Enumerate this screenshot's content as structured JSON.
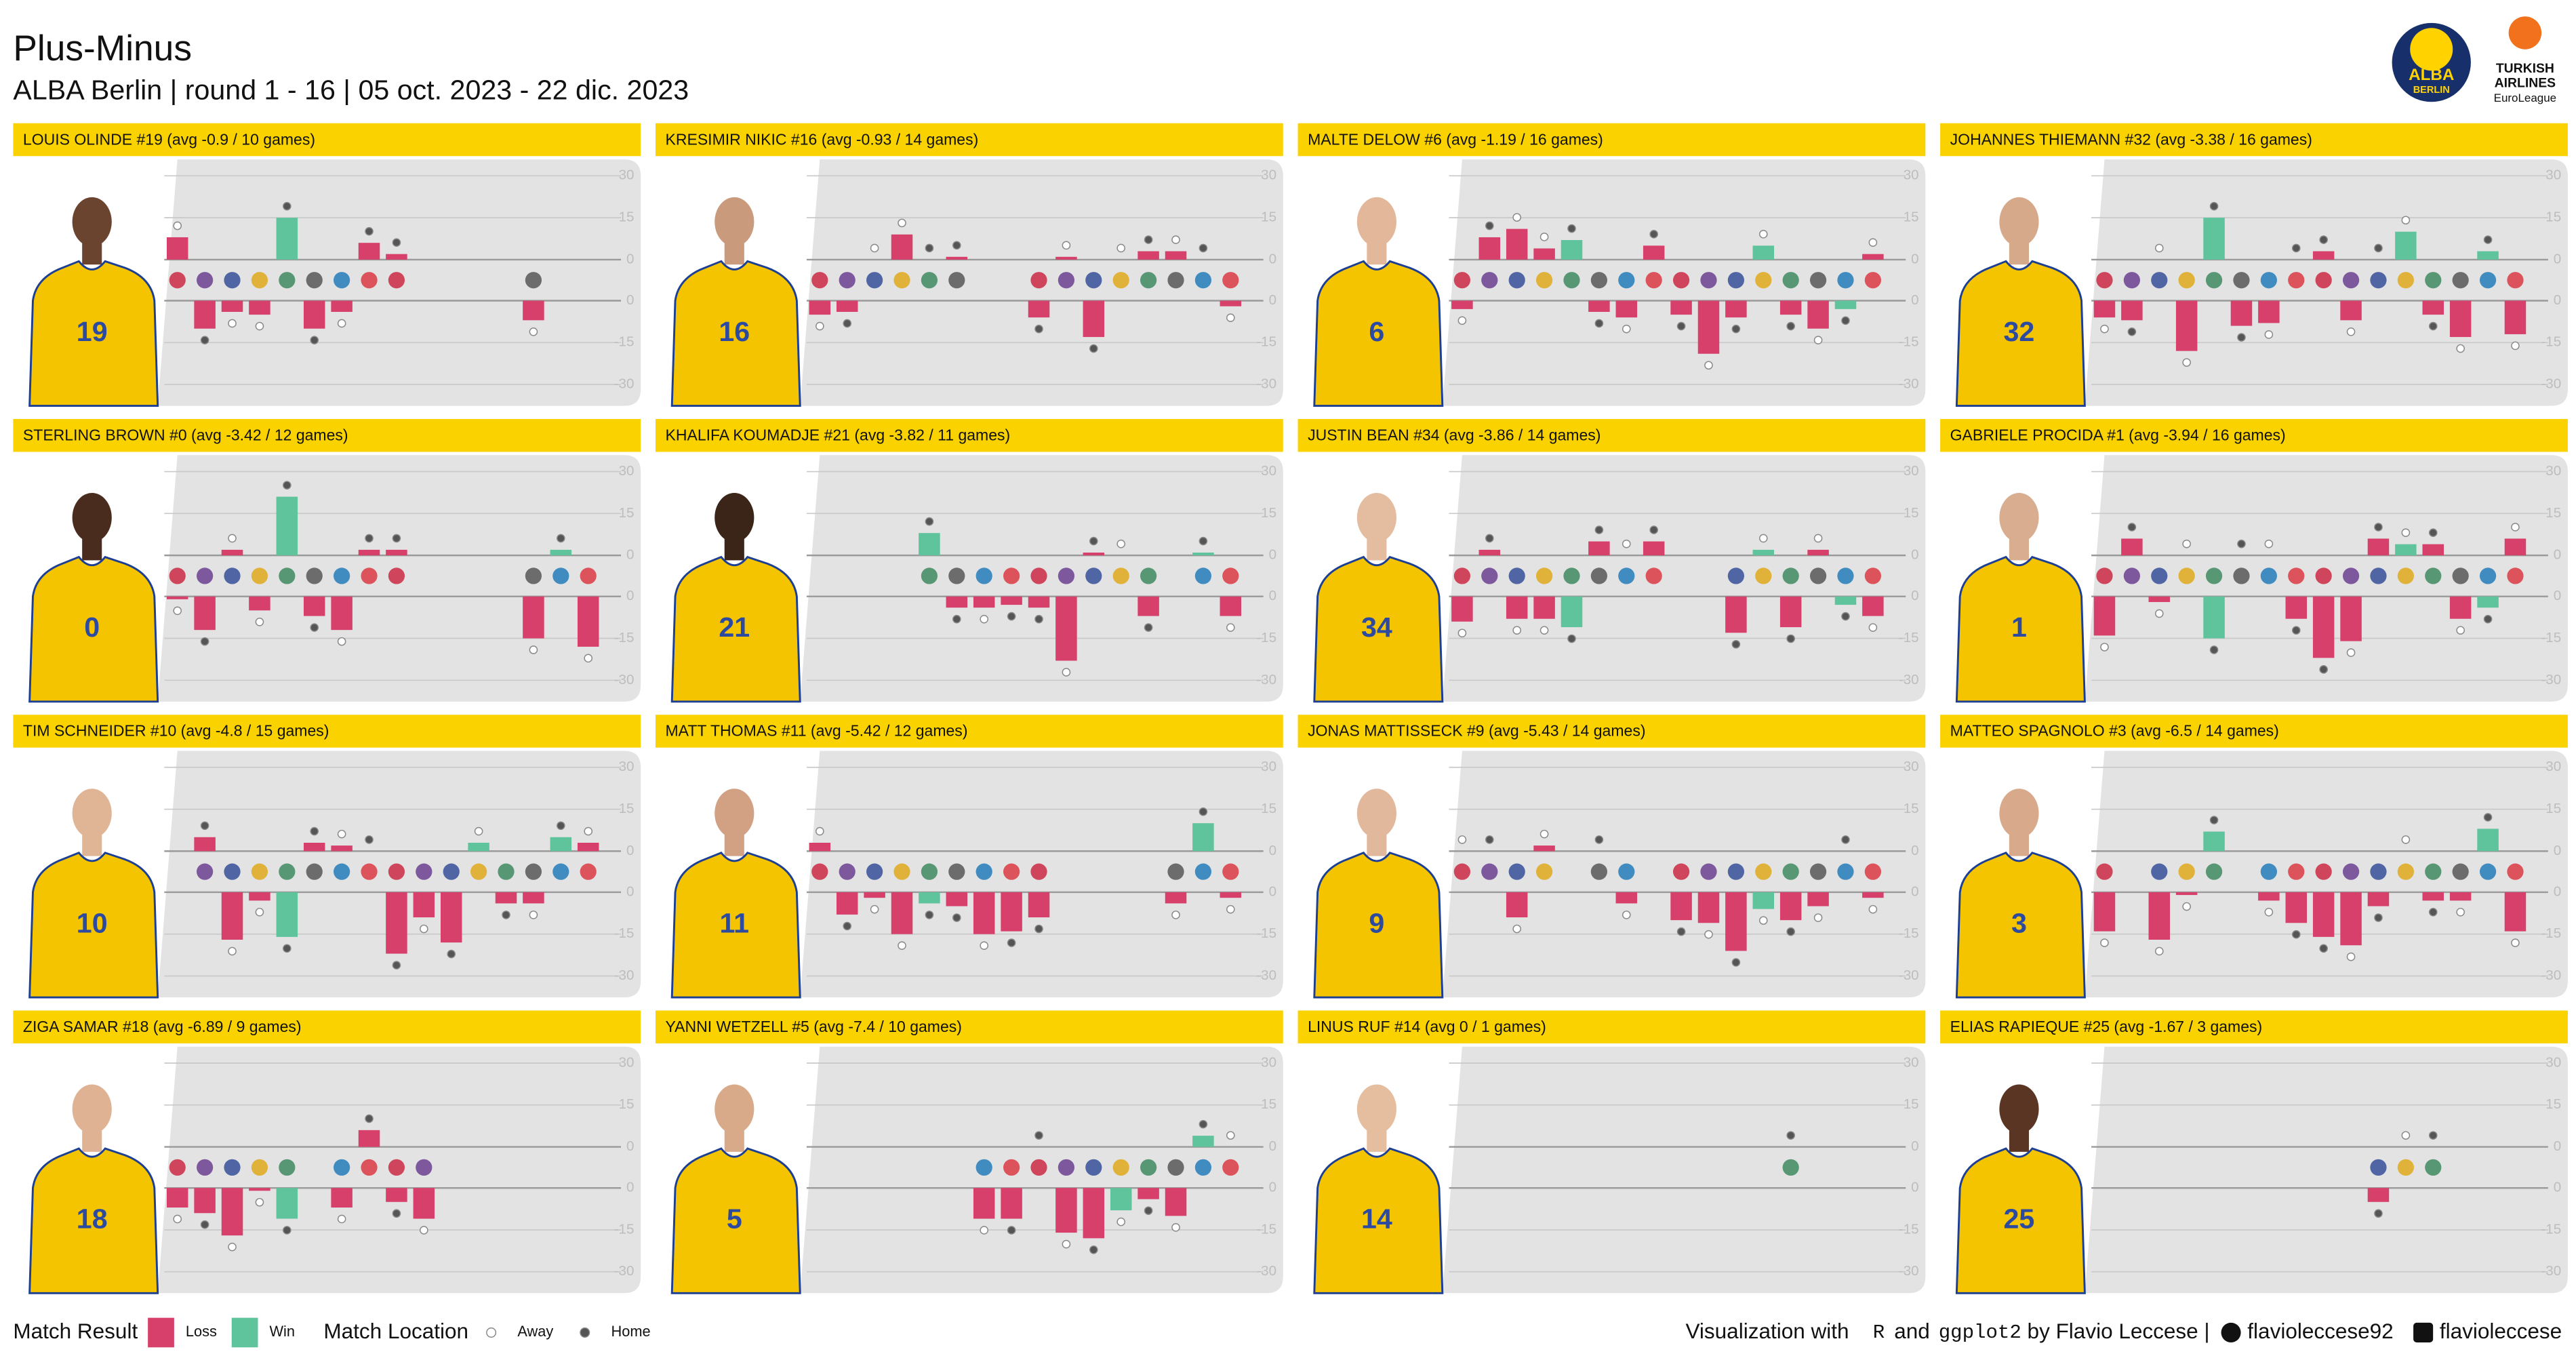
{
  "chart_data": {
    "type": "bar",
    "title": "Plus-Minus",
    "subtitle": "ALBA Berlin | round 1 - 16 | 05 oct. 2023 - 22 dic. 2023",
    "ylim": [
      -30,
      30
    ],
    "yticks": [
      30,
      15,
      0,
      -15,
      -30
    ],
    "colors": {
      "Loss": "#d6406b",
      "Win": "#5fc39c"
    },
    "result": [
      "Loss",
      "Loss",
      "Loss",
      "Loss",
      "Win",
      "Loss",
      "Loss",
      "Loss",
      "Loss",
      "Loss",
      "Loss",
      "Win",
      "Loss",
      "Loss",
      "Win",
      "Loss"
    ],
    "location": [
      "Away",
      "Home",
      "Away",
      "Away",
      "Home",
      "Home",
      "Away",
      "Home",
      "Home",
      "Away",
      "Home",
      "Away",
      "Home",
      "Away",
      "Home",
      "Away"
    ],
    "panels": [
      {
        "title": "LOUIS OLINDE #19 (avg -0.9 / 10 games)",
        "number": "19",
        "values": [
          8,
          -10,
          -4,
          -5,
          15,
          -10,
          -4,
          6,
          2,
          null,
          null,
          null,
          null,
          -7,
          null,
          null
        ]
      },
      {
        "title": "KRESIMIR NIKIC #16 (avg -0.93 / 14 games)",
        "number": "16",
        "values": [
          -5,
          -4,
          0,
          9,
          0,
          1,
          null,
          null,
          -6,
          1,
          -13,
          0,
          3,
          3,
          0,
          -2
        ]
      },
      {
        "title": "MALTE DELOW #6 (avg -1.19 / 16 games)",
        "number": "6",
        "values": [
          -3,
          8,
          11,
          4,
          7,
          -4,
          -6,
          5,
          -5,
          -19,
          -6,
          5,
          -5,
          -10,
          -3,
          2
        ]
      },
      {
        "title": "JOHANNES THIEMANN #32 (avg -3.38 / 16 games)",
        "number": "32",
        "values": [
          -6,
          -7,
          0,
          -18,
          15,
          -9,
          -8,
          0,
          3,
          -7,
          0,
          10,
          -5,
          -13,
          3,
          -12
        ]
      },
      {
        "title": "STERLING BROWN #0 (avg -3.42 / 12 games)",
        "number": "0",
        "values": [
          -1,
          -12,
          2,
          -5,
          21,
          -7,
          -12,
          2,
          2,
          null,
          null,
          null,
          null,
          -15,
          2,
          -18
        ]
      },
      {
        "title": "KHALIFA KOUMADJE #21 (avg -3.82 / 11 games)",
        "number": "21",
        "values": [
          null,
          null,
          null,
          null,
          8,
          -4,
          -4,
          -3,
          -4,
          -23,
          1,
          0,
          -7,
          null,
          1,
          -7
        ]
      },
      {
        "title": "JUSTIN BEAN #34 (avg -3.86 / 14 games)",
        "number": "34",
        "values": [
          -9,
          2,
          -8,
          -8,
          -11,
          5,
          0,
          5,
          null,
          null,
          -13,
          2,
          -11,
          2,
          -3,
          -7
        ]
      },
      {
        "title": "GABRIELE PROCIDA #1 (avg -3.94 / 16 games)",
        "number": "1",
        "values": [
          -14,
          6,
          -2,
          0,
          -15,
          0,
          0,
          -8,
          -22,
          -16,
          6,
          4,
          4,
          -8,
          -4,
          6
        ]
      },
      {
        "title": "TIM SCHNEIDER #10 (avg -4.8 / 15 games)",
        "number": "10",
        "values": [
          null,
          5,
          -17,
          -3,
          -16,
          3,
          2,
          0,
          -22,
          -9,
          -18,
          3,
          -4,
          -4,
          5,
          3
        ]
      },
      {
        "title": "MATT THOMAS #11 (avg -5.42 / 12 games)",
        "number": "11",
        "values": [
          3,
          -8,
          -2,
          -15,
          -4,
          -5,
          -15,
          -14,
          -9,
          null,
          null,
          null,
          null,
          -4,
          10,
          -2
        ]
      },
      {
        "title": "JONAS MATTISSECK #9 (avg -5.43 / 14 games)",
        "number": "9",
        "values": [
          0,
          0,
          -9,
          2,
          null,
          0,
          -4,
          null,
          -10,
          -11,
          -21,
          -6,
          -10,
          -5,
          0,
          -2
        ]
      },
      {
        "title": "MATTEO SPAGNOLO #3 (avg -6.5 / 14 games)",
        "number": "3",
        "values": [
          -14,
          null,
          -17,
          -1,
          7,
          null,
          -3,
          -11,
          -16,
          -19,
          -5,
          0,
          -3,
          -3,
          8,
          -14
        ]
      },
      {
        "title": "ZIGA SAMAR #18 (avg -6.89 / 9 games)",
        "number": "18",
        "values": [
          -7,
          -9,
          -17,
          -1,
          -11,
          null,
          -7,
          6,
          -5,
          -11,
          null,
          null,
          null,
          null,
          null,
          null
        ]
      },
      {
        "title": "YANNI WETZELL #5 (avg -7.4 / 10 games)",
        "number": "5",
        "values": [
          null,
          null,
          null,
          null,
          null,
          null,
          -11,
          -11,
          0,
          -16,
          -18,
          -8,
          -4,
          -10,
          4,
          0
        ]
      },
      {
        "title": "LINUS RUF #14 (avg 0 / 1 games)",
        "number": "14",
        "values": [
          null,
          null,
          null,
          null,
          null,
          null,
          null,
          null,
          null,
          null,
          null,
          null,
          0,
          null,
          null,
          null
        ]
      },
      {
        "title": "ELIAS RAPIEQUE #25 (avg -1.67 / 3 games)",
        "number": "25",
        "values": [
          null,
          null,
          null,
          null,
          null,
          null,
          null,
          null,
          null,
          null,
          -5,
          0,
          0,
          null,
          null,
          null
        ]
      }
    ],
    "legend": {
      "result_title": "Match Result",
      "result_labels": [
        "Loss",
        "Win"
      ],
      "location_title": "Match Location",
      "location_labels": [
        "Away",
        "Home"
      ]
    },
    "credits": {
      "lead": "Visualization with",
      "r": "R",
      "and": "and",
      "pkg": "ggplot2",
      "by": "by Flavio Leccese |",
      "github": "flavioleccese92",
      "linkedin": "flavioleccese"
    },
    "logos": {
      "alba": [
        "ALBA",
        "BERLIN"
      ],
      "euroleague": [
        "TURKISH",
        "AIRLINES",
        "EuroLeague"
      ]
    }
  }
}
